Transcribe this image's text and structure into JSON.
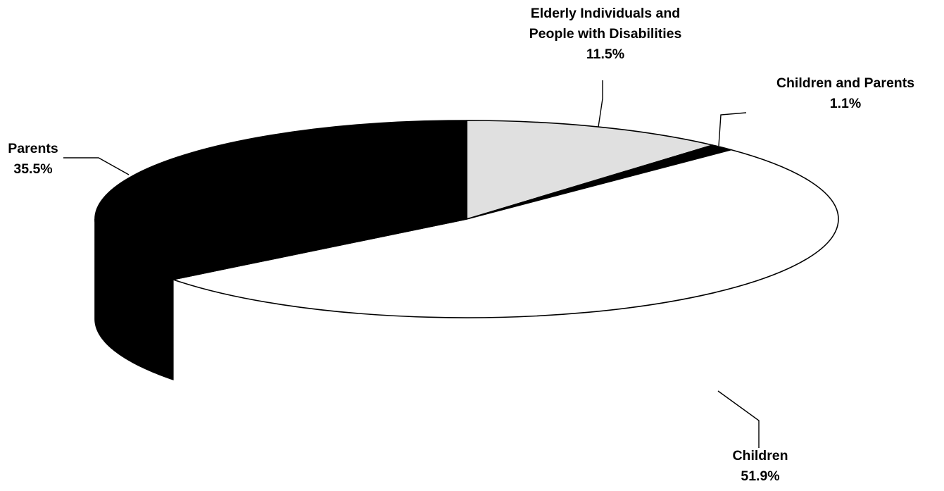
{
  "chart_data": {
    "type": "pie",
    "style": "3d-exploded-ellipse",
    "slices": [
      {
        "name": "Elderly Individuals and People with Disabilities",
        "name_lines": [
          "Elderly Individuals and",
          "People with Disabilities"
        ],
        "value": 11.5,
        "value_label": "11.5%",
        "color": "#e0e0e0"
      },
      {
        "name": "Children and Parents",
        "name_lines": [
          "Children and Parents"
        ],
        "value": 1.1,
        "value_label": "1.1%",
        "color": "#000000"
      },
      {
        "name": "Children",
        "name_lines": [
          "Children"
        ],
        "value": 51.9,
        "value_label": "51.9%",
        "color": "#ffffff",
        "side_color": "#808080"
      },
      {
        "name": "Parents",
        "name_lines": [
          "Parents"
        ],
        "value": 35.5,
        "value_label": "35.5%",
        "color": "#000000",
        "side_color": "#000000"
      }
    ]
  }
}
